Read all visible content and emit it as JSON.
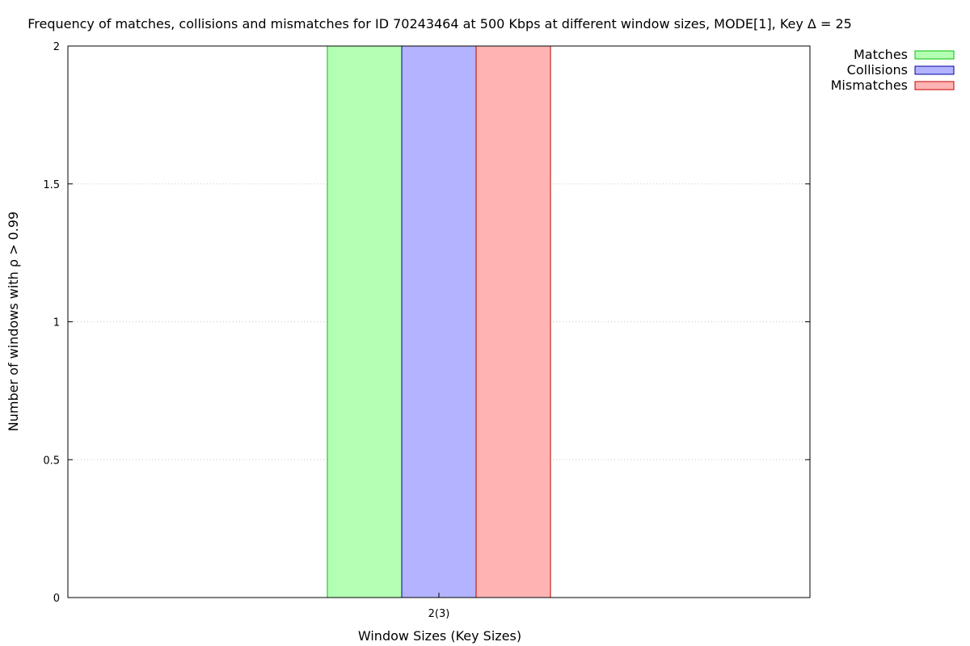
{
  "chart_data": {
    "type": "bar",
    "title": "Frequency of matches, collisions and mismatches for ID 70243464 at 500 Kbps at different window sizes, MODE[1], Key Δ = 25",
    "xlabel": "Window Sizes (Key Sizes)",
    "ylabel": "Number of windows with ρ > 0.99",
    "categories": [
      "2(3)"
    ],
    "series": [
      {
        "name": "Matches",
        "values": [
          2
        ],
        "fill": "#b3ffb3",
        "stroke": "#00c000"
      },
      {
        "name": "Collisions",
        "values": [
          2
        ],
        "fill": "#b3b3ff",
        "stroke": "#0000a0"
      },
      {
        "name": "Mismatches",
        "values": [
          2
        ],
        "fill": "#ffb3b3",
        "stroke": "#c00000"
      }
    ],
    "ylim": [
      0,
      2
    ],
    "yticks": [
      "0",
      "0.5",
      "1",
      "1.5",
      "2"
    ],
    "ytick_values": [
      0,
      0.5,
      1,
      1.5,
      2
    ],
    "grid": true,
    "legend_position": "outside top-right"
  }
}
